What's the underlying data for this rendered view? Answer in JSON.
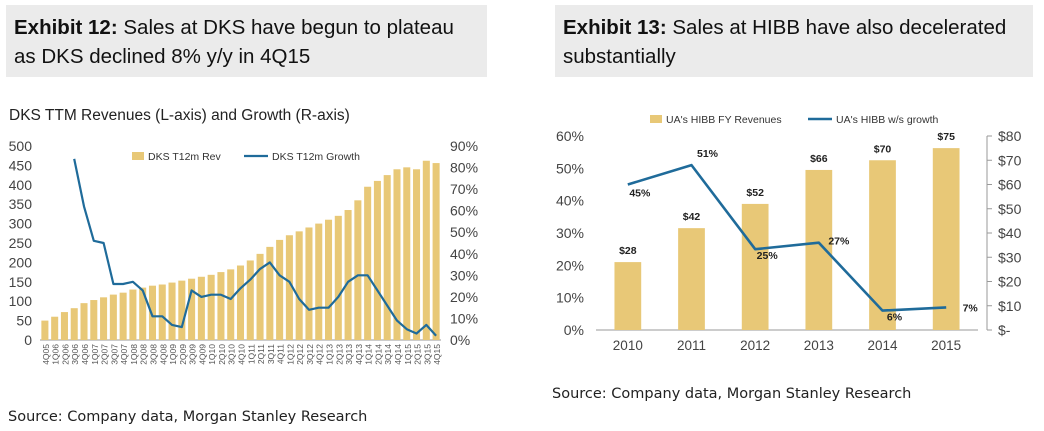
{
  "exhibit_left": {
    "label": "Exhibit 12:",
    "title": "Sales at DKS have begun to plateau as DKS declined 8% y/y in 4Q15"
  },
  "exhibit_right": {
    "label": "Exhibit 13:",
    "title": "Sales at HIBB have also decelerated substantially"
  },
  "source_left": "Source: Company data, Morgan Stanley Research",
  "source_right": "Source: Company data, Morgan Stanley Research",
  "colors": {
    "bar": "#e8c877",
    "line": "#1f6b9a",
    "axis": "#999999"
  },
  "chart_data": [
    {
      "type": "bar",
      "title": "DKS TTM Revenues (L-axis) and Growth (R-axis)",
      "legend_position": "top-center",
      "categories": [
        "4Q05",
        "1Q06",
        "2Q06",
        "3Q06",
        "4Q06",
        "1Q07",
        "2Q07",
        "3Q07",
        "4Q07",
        "1Q08",
        "2Q08",
        "3Q08",
        "4Q08",
        "1Q09",
        "2Q09",
        "3Q09",
        "4Q09",
        "1Q10",
        "2Q10",
        "3Q10",
        "4Q10",
        "1Q11",
        "2Q11",
        "3Q11",
        "4Q11",
        "1Q12",
        "2Q12",
        "3Q12",
        "4Q12",
        "1Q13",
        "2Q13",
        "3Q13",
        "4Q13",
        "1Q14",
        "2Q14",
        "3Q14",
        "4Q14",
        "1Q15",
        "2Q15",
        "3Q15",
        "4Q15"
      ],
      "y_left": {
        "range": [
          0,
          500
        ],
        "ticks": [
          "0",
          "50",
          "100",
          "150",
          "200",
          "250",
          "300",
          "350",
          "400",
          "450",
          "500"
        ]
      },
      "y_right": {
        "range": [
          0,
          90
        ],
        "ticks": [
          "0%",
          "10%",
          "20%",
          "30%",
          "40%",
          "50%",
          "60%",
          "70%",
          "80%",
          "90%"
        ]
      },
      "series": [
        {
          "name": "DKS T12m Rev",
          "type": "bar",
          "axis": "left",
          "values": [
            50,
            60,
            72,
            82,
            95,
            103,
            110,
            117,
            122,
            130,
            135,
            140,
            143,
            148,
            153,
            158,
            163,
            168,
            175,
            182,
            192,
            205,
            222,
            240,
            258,
            270,
            280,
            290,
            300,
            310,
            320,
            335,
            360,
            395,
            410,
            425,
            440,
            445,
            440,
            462,
            456
          ]
        },
        {
          "name": "DKS T12m Growth",
          "type": "line",
          "axis": "right",
          "values": [
            null,
            null,
            null,
            84,
            62,
            46,
            45,
            26,
            26,
            27,
            23,
            11,
            11,
            7,
            6,
            23,
            20,
            21,
            21,
            19,
            24,
            28,
            33,
            36,
            30,
            27,
            19,
            14,
            15,
            15,
            20,
            27,
            30,
            30,
            23,
            16,
            9,
            5,
            3,
            7,
            2
          ]
        }
      ]
    },
    {
      "type": "bar",
      "legend_position": "top-center",
      "categories": [
        "2010",
        "2011",
        "2012",
        "2013",
        "2014",
        "2015"
      ],
      "y_left": {
        "range": [
          0,
          60
        ],
        "ticks": [
          "0%",
          "10%",
          "20%",
          "30%",
          "40%",
          "50%",
          "60%"
        ]
      },
      "y_right": {
        "range": [
          0,
          80
        ],
        "ticks": [
          "$-",
          "$10",
          "$20",
          "$30",
          "$40",
          "$50",
          "$60",
          "$70",
          "$80"
        ]
      },
      "series": [
        {
          "name": "UA's HIBB FY Revenues",
          "type": "bar",
          "axis": "right",
          "values": [
            28,
            42,
            52,
            66,
            70,
            75
          ],
          "labels": [
            "$28",
            "$42",
            "$52",
            "$66",
            "$70",
            "$75"
          ]
        },
        {
          "name": "UA's HIBB w/s growth",
          "type": "line",
          "axis": "left",
          "values": [
            45,
            51,
            25,
            27,
            6,
            7
          ],
          "labels": [
            "45%",
            "51%",
            "25%",
            "27%",
            "6%",
            "7%"
          ]
        }
      ]
    }
  ]
}
